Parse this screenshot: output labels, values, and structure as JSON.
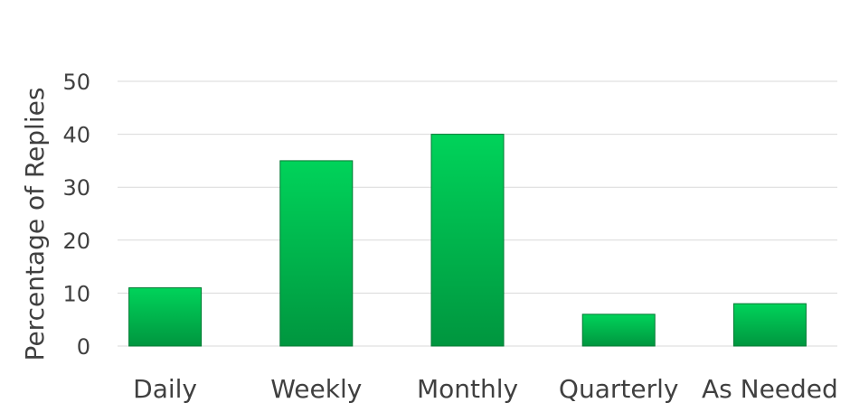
{
  "chart_data": {
    "type": "bar",
    "title": "",
    "xlabel": "",
    "ylabel": "Percentage of Replies",
    "categories": [
      "Daily",
      "Weekly",
      "Monthly",
      "Quarterly",
      "As Needed"
    ],
    "values": [
      11,
      35,
      40,
      6,
      8
    ],
    "ylim": [
      0,
      50
    ],
    "yticks": [
      "0",
      "10",
      "20",
      "30",
      "40",
      "50"
    ],
    "grid": true,
    "legend": "none",
    "bar_color_top": "#00d35a",
    "bar_color_bottom": "#00963f",
    "bar_edge_color": "#007a33"
  }
}
